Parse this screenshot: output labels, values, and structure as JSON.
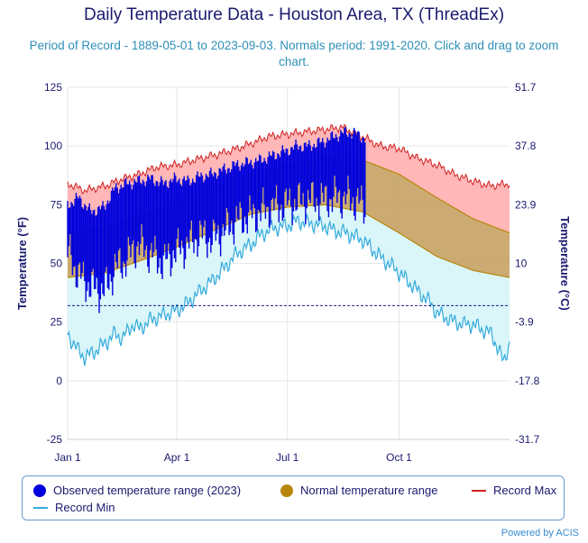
{
  "title": "Daily Temperature Data - Houston Area, TX (ThreadEx)",
  "subtitle": "Period of Record - 1889-05-01 to 2023-09-03. Normals period: 1991-2020. Click and drag to zoom chart.",
  "credit": "Powered by ACIS",
  "chart_data": {
    "type": "area",
    "title": "Daily Temperature Data - Houston Area, TX (ThreadEx)",
    "xlabel": "",
    "ylabel": "Temperature (°F)",
    "y2label": "Temperature (°C)",
    "ylim": [
      -25,
      125
    ],
    "y_ticks": [
      -25,
      0,
      25,
      50,
      75,
      100,
      125
    ],
    "y_ticks_labels": [
      "-25",
      "0",
      "25",
      "50",
      "75",
      "100",
      "125"
    ],
    "y2_ticks_labels": [
      "-31.7",
      "-17.8",
      "-3.9",
      "10",
      "23.9",
      "37.8",
      "51.7"
    ],
    "x_tick_days": [
      1,
      91,
      182,
      274
    ],
    "x_tick_labels": [
      "Jan 1",
      "Apr 1",
      "Jul 1",
      "Oct 1"
    ],
    "freezing_line": 32,
    "grid": true,
    "legend_position": "bottom",
    "record_max": {
      "days": [
        1,
        15,
        32,
        46,
        60,
        74,
        91,
        105,
        121,
        135,
        152,
        166,
        182,
        196,
        213,
        227,
        244,
        258,
        274,
        288,
        305,
        319,
        335,
        349,
        365
      ],
      "values": [
        84,
        81,
        83,
        86,
        88,
        91,
        92,
        94,
        96,
        98,
        101,
        104,
        105,
        106,
        107,
        108,
        104,
        100,
        99,
        95,
        92,
        88,
        85,
        83,
        84
      ]
    },
    "normal_max": {
      "days": [
        1,
        32,
        60,
        91,
        121,
        152,
        182,
        213,
        244,
        274,
        305,
        335,
        365
      ],
      "values": [
        63,
        65,
        70,
        76,
        82,
        88,
        92,
        95,
        94,
        88,
        78,
        69,
        63
      ]
    },
    "normal_min": {
      "days": [
        1,
        32,
        60,
        91,
        121,
        152,
        182,
        213,
        244,
        274,
        305,
        335,
        365
      ],
      "values": [
        44,
        46,
        51,
        57,
        64,
        71,
        74,
        75,
        72,
        63,
        53,
        47,
        44
      ]
    },
    "record_min": {
      "days": [
        1,
        8,
        15,
        22,
        32,
        40,
        46,
        55,
        60,
        70,
        80,
        91,
        100,
        110,
        121,
        130,
        140,
        152,
        160,
        170,
        182,
        190,
        200,
        213,
        220,
        230,
        244,
        252,
        260,
        270,
        274,
        282,
        290,
        300,
        305,
        312,
        320,
        328,
        335,
        342,
        350,
        356,
        360,
        365
      ],
      "values": [
        20,
        14,
        10,
        12,
        16,
        20,
        18,
        24,
        22,
        26,
        28,
        30,
        33,
        38,
        43,
        48,
        54,
        58,
        62,
        65,
        66,
        68,
        67,
        66,
        64,
        63,
        60,
        56,
        52,
        48,
        46,
        42,
        38,
        33,
        29,
        27,
        25,
        24,
        24,
        22,
        20,
        13,
        8,
        16
      ]
    },
    "series": [
      {
        "name": "Observed temperature range (2023)",
        "color": "#0000dd"
      },
      {
        "name": "Normal temperature range",
        "color": "#b8860b"
      },
      {
        "name": "Record Max",
        "color": "#d02020"
      },
      {
        "name": "Record Min",
        "color": "#33aadd"
      }
    ],
    "observed_2023": {
      "days": [
        1,
        10,
        20,
        31,
        40,
        50,
        59,
        70,
        80,
        90,
        100,
        110,
        120,
        130,
        140,
        151,
        160,
        170,
        181,
        190,
        200,
        212,
        220,
        230,
        240,
        246
      ],
      "highs": [
        75,
        78,
        72,
        74,
        82,
        84,
        85,
        86,
        84,
        86,
        85,
        87,
        88,
        90,
        92,
        93,
        94,
        96,
        98,
        100,
        100,
        102,
        104,
        106,
        105,
        103
      ],
      "lows": [
        55,
        45,
        40,
        38,
        48,
        52,
        58,
        54,
        50,
        55,
        58,
        62,
        60,
        64,
        68,
        70,
        72,
        74,
        75,
        76,
        77,
        77,
        78,
        78,
        76,
        74
      ]
    }
  },
  "legend": {
    "observed": "Observed temperature range (2023)",
    "normal": "Normal temperature range",
    "record_max": "Record Max",
    "record_min": "Record Min"
  },
  "colors": {
    "record_band": "#ffb3b3",
    "cold_band": "#d8f5f8",
    "normal_band": "#c9a66b",
    "observed": "#0000dd",
    "record_max_line": "#d02020",
    "record_min_line": "#33aadd",
    "normal_line": "#b8860b",
    "axis_text": "#1a1a6e"
  }
}
